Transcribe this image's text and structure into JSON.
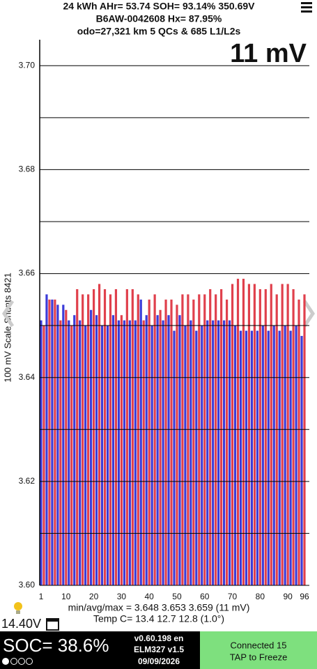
{
  "header": {
    "line1": "24 kWh  AHr= 53.74  SOH= 93.14%   350.69V",
    "line2": "B6AW-0042608   Hx= 87.95%",
    "line3": "odo=27,321 km 5 QCs & 685 L1/L2s",
    "spread": "11 mV"
  },
  "chart_data": {
    "type": "bar",
    "y_label": "100 mV Scale  Shunts 8421",
    "values": [
      3.651,
      3.65,
      3.656,
      3.655,
      3.655,
      3.655,
      3.654,
      3.651,
      3.654,
      3.653,
      3.651,
      3.65,
      3.652,
      3.657,
      3.651,
      3.656,
      3.65,
      3.656,
      3.653,
      3.657,
      3.652,
      3.658,
      3.65,
      3.657,
      3.65,
      3.656,
      3.652,
      3.657,
      3.651,
      3.652,
      3.651,
      3.657,
      3.651,
      3.657,
      3.651,
      3.656,
      3.655,
      3.651,
      3.652,
      3.655,
      3.65,
      3.656,
      3.652,
      3.653,
      3.651,
      3.655,
      3.652,
      3.655,
      3.649,
      3.654,
      3.652,
      3.656,
      3.65,
      3.656,
      3.651,
      3.655,
      3.649,
      3.656,
      3.65,
      3.656,
      3.651,
      3.657,
      3.651,
      3.656,
      3.651,
      3.657,
      3.651,
      3.655,
      3.651,
      3.658,
      3.65,
      3.659,
      3.649,
      3.659,
      3.649,
      3.658,
      3.649,
      3.658,
      3.649,
      3.657,
      3.65,
      3.657,
      3.649,
      3.658,
      3.65,
      3.656,
      3.649,
      3.658,
      3.65,
      3.658,
      3.649,
      3.657,
      3.65,
      3.655,
      3.648,
      3.656
    ],
    "bar_colors": [
      "#3b3bd8",
      "#e0404c"
    ],
    "ylim": [
      3.6,
      3.705
    ],
    "yticks": [
      {
        "value": 3.6,
        "label": "3.60"
      },
      3.62,
      3.64,
      3.66,
      3.68,
      {
        "value": 3.7,
        "label": "3.70"
      }
    ],
    "minor_gridlines": [
      3.61,
      3.63,
      3.65,
      3.67,
      3.69
    ],
    "xticks": [
      1,
      10,
      20,
      30,
      40,
      50,
      60,
      70,
      80,
      90,
      96
    ],
    "grid": true
  },
  "footer": {
    "stats": "min/avg/max = 3.648 3.653 3.659  (11 mV)",
    "temp": "Temp C= 13.4  12.7  12.8  (1.0°)",
    "aux_voltage": "14.40V",
    "soc": "SOC= 38.6%",
    "version": "v0.60.198 en",
    "adapter": "ELM327 v1.5",
    "date": "09/09/2026",
    "status": "Connected 15",
    "action": "TAP to Freeze"
  }
}
